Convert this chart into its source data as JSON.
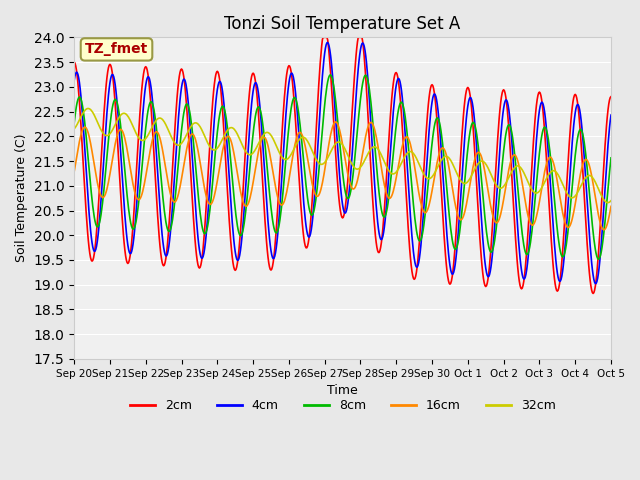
{
  "title": "Tonzi Soil Temperature Set A",
  "xlabel": "Time",
  "ylabel": "Soil Temperature (C)",
  "ylim": [
    17.5,
    24.0
  ],
  "yticks": [
    17.5,
    18.0,
    18.5,
    19.0,
    19.5,
    20.0,
    20.5,
    21.0,
    21.5,
    22.0,
    22.5,
    23.0,
    23.5,
    24.0
  ],
  "line_colors": {
    "2cm": "#ff0000",
    "4cm": "#0000ff",
    "8cm": "#00bb00",
    "16cm": "#ff8800",
    "32cm": "#cccc00"
  },
  "legend_label": "TZ_fmet",
  "legend_bbox_color": "#ffffcc",
  "legend_text_color": "#aa0000",
  "bg_color": "#e8e8e8",
  "plot_bg_color": "#f0f0f0",
  "xtick_labels": [
    "Sep 20",
    "Sep 21",
    "Sep 22",
    "Sep 23",
    "Sep 24",
    "Sep 25",
    "Sep 26",
    "Sep 27",
    "Sep 28",
    "Sep 29",
    "Sep 30",
    "Oct 1",
    "Oct 2",
    "Oct 3",
    "Oct 4",
    "Oct 5"
  ],
  "n_days": 15,
  "samples_per_day": 48
}
